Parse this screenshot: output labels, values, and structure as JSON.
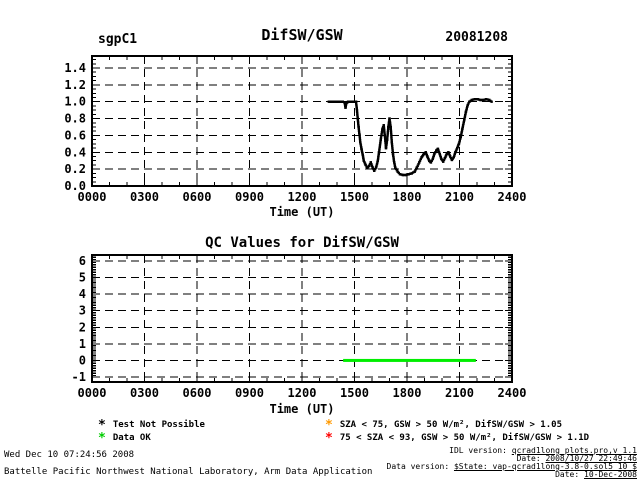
{
  "header": {
    "site": "sgpC1",
    "title": "DifSW/GSW",
    "date": "20081208"
  },
  "legend": {
    "items": [
      {
        "symbol": "*",
        "color": "#000000",
        "label": "Test Not Possible"
      },
      {
        "symbol": "*",
        "color": "#00cc00",
        "label": "Data OK"
      },
      {
        "symbol": "*",
        "color": "#ff9900",
        "label": "SZA < 75, GSW > 50 W/m², DifSW/GSW > 1.05"
      },
      {
        "symbol": "*",
        "color": "#ff0000",
        "label": "75 < SZA < 93, GSW > 50 W/m², DifSW/GSW > 1.1D"
      }
    ]
  },
  "footer": {
    "left_line1": "Wed Dec 10 07:24:56 2008",
    "left_line2": "Battelle Pacific Northwest National Laboratory, Arm Data Application",
    "right_lines": [
      {
        "label": "IDL version: ",
        "value": "qcrad1long_plots.pro,v 1.1"
      },
      {
        "label": "Date: ",
        "value": "2008/10/27 22:49:46"
      },
      {
        "label": "Data version: ",
        "value": "$State: vap-qcrad1long-3.8-0.sol5_10 $"
      },
      {
        "label": "Date: ",
        "value": "10-Dec-2008"
      }
    ]
  },
  "chart_data": [
    {
      "type": "scatter",
      "title": "DifSW/GSW",
      "site": "sgpC1",
      "date_label": "20081208",
      "xlabel": "Time (UT)",
      "x_unit": "minutes of day, UT",
      "xlim": [
        0,
        1440
      ],
      "xticks": [
        0,
        180,
        360,
        540,
        720,
        900,
        1080,
        1260,
        1440
      ],
      "xticklabels": [
        "0000",
        "0300",
        "0600",
        "0900",
        "1200",
        "1500",
        "1800",
        "2100",
        "2400"
      ],
      "ylim": [
        0,
        1.55
      ],
      "yticks": [
        0,
        0.2,
        0.4,
        0.6,
        0.8,
        1.0,
        1.2,
        1.4
      ],
      "yticklabels": [
        "0.0",
        "0.2",
        "0.4",
        "0.6",
        "0.8",
        "1.0",
        "1.2",
        "1.4"
      ],
      "grid": "dashed",
      "marker_color": "#000000",
      "points": [
        [
          812,
          1.0
        ],
        [
          820,
          1.0
        ],
        [
          828,
          1.0
        ],
        [
          836,
          1.0
        ],
        [
          844,
          1.0
        ],
        [
          852,
          1.0
        ],
        [
          860,
          1.0
        ],
        [
          866,
          0.99
        ],
        [
          869,
          0.93
        ],
        [
          872,
          0.98
        ],
        [
          878,
          1.0
        ],
        [
          886,
          1.0
        ],
        [
          894,
          1.0
        ],
        [
          900,
          1.0
        ],
        [
          905,
          1.0
        ],
        [
          908,
          0.92
        ],
        [
          911,
          0.8
        ],
        [
          914,
          0.7
        ],
        [
          917,
          0.61
        ],
        [
          920,
          0.52
        ],
        [
          924,
          0.44
        ],
        [
          928,
          0.37
        ],
        [
          932,
          0.3
        ],
        [
          938,
          0.25
        ],
        [
          944,
          0.21
        ],
        [
          950,
          0.24
        ],
        [
          956,
          0.28
        ],
        [
          962,
          0.22
        ],
        [
          968,
          0.18
        ],
        [
          974,
          0.22
        ],
        [
          980,
          0.3
        ],
        [
          984,
          0.4
        ],
        [
          990,
          0.55
        ],
        [
          996,
          0.68
        ],
        [
          1000,
          0.72
        ],
        [
          1004,
          0.6
        ],
        [
          1008,
          0.45
        ],
        [
          1012,
          0.55
        ],
        [
          1016,
          0.7
        ],
        [
          1020,
          0.8
        ],
        [
          1024,
          0.7
        ],
        [
          1028,
          0.52
        ],
        [
          1032,
          0.38
        ],
        [
          1036,
          0.28
        ],
        [
          1040,
          0.22
        ],
        [
          1048,
          0.17
        ],
        [
          1056,
          0.14
        ],
        [
          1066,
          0.13
        ],
        [
          1076,
          0.13
        ],
        [
          1086,
          0.14
        ],
        [
          1096,
          0.15
        ],
        [
          1106,
          0.17
        ],
        [
          1114,
          0.22
        ],
        [
          1122,
          0.28
        ],
        [
          1130,
          0.34
        ],
        [
          1138,
          0.38
        ],
        [
          1144,
          0.4
        ],
        [
          1150,
          0.35
        ],
        [
          1156,
          0.3
        ],
        [
          1162,
          0.28
        ],
        [
          1168,
          0.32
        ],
        [
          1174,
          0.38
        ],
        [
          1180,
          0.42
        ],
        [
          1186,
          0.44
        ],
        [
          1192,
          0.38
        ],
        [
          1198,
          0.32
        ],
        [
          1204,
          0.29
        ],
        [
          1210,
          0.33
        ],
        [
          1216,
          0.38
        ],
        [
          1222,
          0.4
        ],
        [
          1228,
          0.35
        ],
        [
          1234,
          0.31
        ],
        [
          1240,
          0.34
        ],
        [
          1246,
          0.4
        ],
        [
          1252,
          0.45
        ],
        [
          1258,
          0.5
        ],
        [
          1264,
          0.58
        ],
        [
          1270,
          0.68
        ],
        [
          1276,
          0.78
        ],
        [
          1282,
          0.88
        ],
        [
          1288,
          0.96
        ],
        [
          1294,
          1.0
        ],
        [
          1302,
          1.02
        ],
        [
          1312,
          1.03
        ],
        [
          1322,
          1.03
        ],
        [
          1332,
          1.02
        ],
        [
          1342,
          1.02
        ],
        [
          1352,
          1.03
        ],
        [
          1362,
          1.02
        ],
        [
          1370,
          1.0
        ]
      ]
    },
    {
      "type": "line",
      "title": "QC Values for DifSW/GSW",
      "xlabel": "Time (UT)",
      "xlim": [
        0,
        1440
      ],
      "xticks": [
        0,
        180,
        360,
        540,
        720,
        900,
        1080,
        1260,
        1440
      ],
      "xticklabels": [
        "0000",
        "0300",
        "0600",
        "0900",
        "1200",
        "1500",
        "1800",
        "2100",
        "2400"
      ],
      "ylim": [
        -1.3,
        6.4
      ],
      "yticks": [
        -1,
        0,
        1,
        2,
        3,
        4,
        5,
        6
      ],
      "yticklabels": [
        "-1",
        "0",
        "1",
        "2",
        "3",
        "4",
        "5",
        "6"
      ],
      "grid": "dashed",
      "segments": [
        {
          "label": "Data OK",
          "color": "#00ee00",
          "y": 0,
          "x0": 861,
          "x1": 1316
        }
      ]
    }
  ]
}
